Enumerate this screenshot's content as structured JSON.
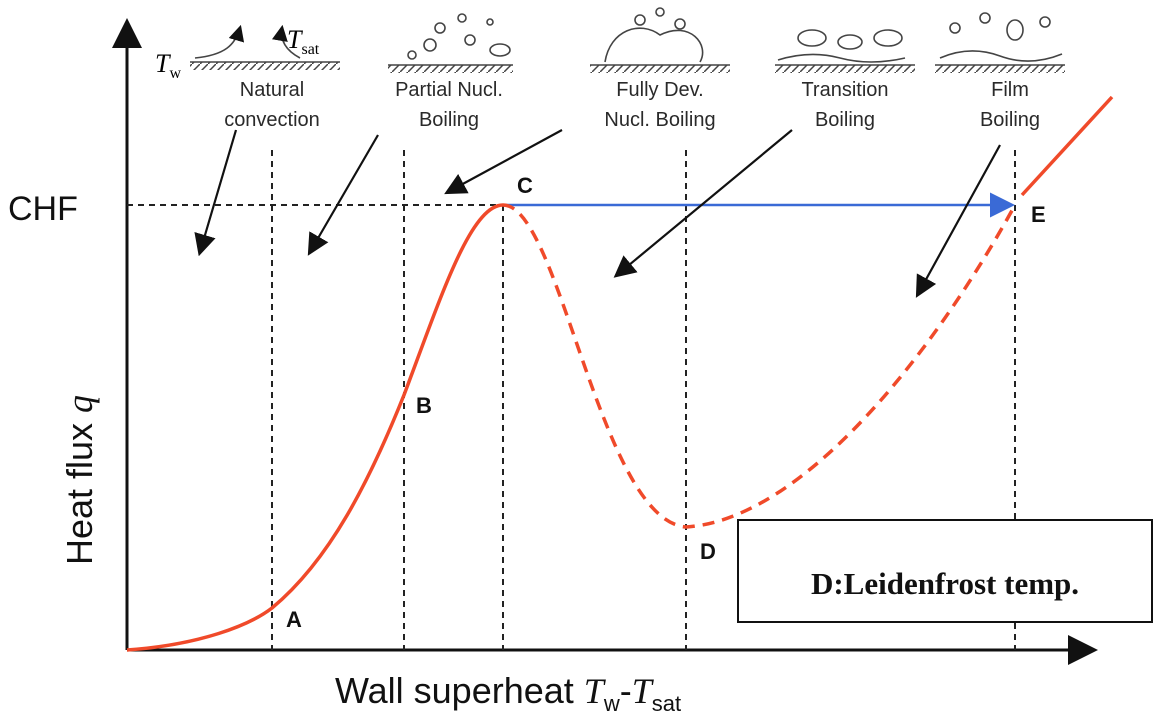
{
  "y_axis": {
    "label": "Heat flux ",
    "variable": "q"
  },
  "x_axis": {
    "label": "Wall superheat ",
    "var1": "T",
    "sub1": "w",
    "dash": "-",
    "var2": "T",
    "sub2": "sat"
  },
  "chf_label": "CHF",
  "illustration": {
    "wall_temp": {
      "symbol": "T",
      "sub": "w"
    },
    "sat_temp": {
      "symbol": "T",
      "sub": "sat"
    }
  },
  "regions": [
    {
      "lines": [
        "Natural",
        "convection"
      ]
    },
    {
      "lines": [
        "Partial Nucl.",
        "Boiling"
      ]
    },
    {
      "lines": [
        "Fully Dev.",
        "Nucl. Boiling"
      ]
    },
    {
      "lines": [
        "Transition",
        "Boiling"
      ]
    },
    {
      "lines": [
        "Film",
        "Boiling"
      ]
    }
  ],
  "points": [
    "A",
    "B",
    "C",
    "D",
    "E"
  ],
  "annotation": "D:Leidenfrost temp."
}
